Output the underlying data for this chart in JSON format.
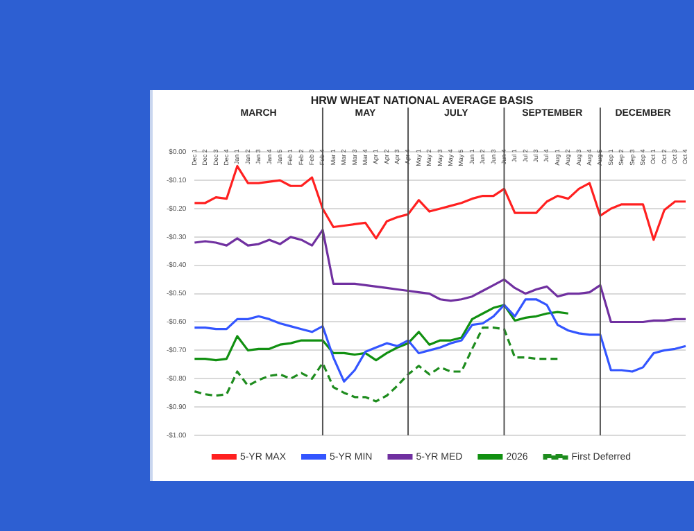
{
  "chart_data": {
    "type": "line",
    "title": "HRW WHEAT NATIONAL AVERAGE BASIS",
    "categories": [
      "Dec 1",
      "Dec 2",
      "Dec 3",
      "Dec 4",
      "Jan 1",
      "Jan 2",
      "Jan 3",
      "Jan 4",
      "Jan 5",
      "Feb 1",
      "Feb 2",
      "Feb 3",
      "Feb 4",
      "Mar 1",
      "Mar 2",
      "Mar 3",
      "Mar 4",
      "Apr 1",
      "Apr 2",
      "Apr 3",
      "Apr 4",
      "May 1",
      "May 2",
      "May 3",
      "May 4",
      "May 5",
      "Jun 1",
      "Jun 2",
      "Jun 3",
      "Jun 4",
      "Jul 1",
      "Jul 2",
      "Jul 3",
      "Jul 4",
      "Aug 1",
      "Aug 2",
      "Aug 3",
      "Aug 4",
      "Aug 5",
      "Sep 1",
      "Sep 2",
      "Sep 3",
      "Sep 4",
      "Oct 1",
      "Oct 2",
      "Oct 3",
      "Oct 4"
    ],
    "series": [
      {
        "name": "5-YR MAX",
        "color": "#ff2020",
        "values": [
          -0.18,
          -0.18,
          -0.16,
          -0.165,
          -0.05,
          -0.11,
          -0.11,
          -0.105,
          -0.1,
          -0.12,
          -0.12,
          -0.09,
          -0.2,
          -0.265,
          -0.26,
          -0.255,
          -0.25,
          -0.305,
          -0.245,
          -0.23,
          -0.22,
          -0.17,
          -0.21,
          -0.2,
          -0.19,
          -0.18,
          -0.165,
          -0.155,
          -0.155,
          -0.13,
          -0.215,
          -0.215,
          -0.215,
          -0.175,
          -0.155,
          -0.165,
          -0.13,
          -0.11,
          -0.225,
          -0.2,
          -0.185,
          -0.185,
          -0.185,
          -0.31,
          -0.205,
          -0.175,
          -0.175
        ]
      },
      {
        "name": "5-YR MIN",
        "color": "#3355ff",
        "values": [
          -0.62,
          -0.62,
          -0.625,
          -0.625,
          -0.59,
          -0.59,
          -0.58,
          -0.59,
          -0.605,
          -0.615,
          -0.625,
          -0.635,
          -0.615,
          -0.725,
          -0.81,
          -0.77,
          -0.705,
          -0.69,
          -0.675,
          -0.685,
          -0.665,
          -0.71,
          -0.7,
          -0.69,
          -0.675,
          -0.665,
          -0.61,
          -0.605,
          -0.58,
          -0.54,
          -0.58,
          -0.52,
          -0.52,
          -0.54,
          -0.61,
          -0.63,
          -0.64,
          -0.645,
          -0.645,
          -0.77,
          -0.77,
          -0.775,
          -0.76,
          -0.71,
          -0.7,
          -0.695,
          -0.685
        ]
      },
      {
        "name": "5-YR MED",
        "color": "#7030a0",
        "values": [
          -0.32,
          -0.315,
          -0.32,
          -0.33,
          -0.305,
          -0.33,
          -0.325,
          -0.31,
          -0.325,
          -0.3,
          -0.31,
          -0.33,
          -0.275,
          -0.465,
          -0.465,
          -0.465,
          -0.47,
          -0.475,
          -0.48,
          -0.485,
          -0.49,
          -0.495,
          -0.5,
          -0.52,
          -0.525,
          -0.52,
          -0.51,
          -0.49,
          -0.47,
          -0.45,
          -0.48,
          -0.5,
          -0.485,
          -0.475,
          -0.51,
          -0.5,
          -0.5,
          -0.495,
          -0.47,
          -0.6,
          -0.6,
          -0.6,
          -0.6,
          -0.595,
          -0.595,
          -0.59,
          -0.59
        ]
      },
      {
        "name": "2026",
        "color": "#119011",
        "values": [
          -0.73,
          -0.73,
          -0.735,
          -0.73,
          -0.65,
          -0.7,
          -0.695,
          -0.695,
          -0.68,
          -0.675,
          -0.665,
          -0.665,
          -0.665,
          -0.71,
          -0.71,
          -0.715,
          -0.71,
          -0.735,
          -0.71,
          -0.69,
          -0.675,
          -0.635,
          -0.68,
          -0.665,
          -0.665,
          -0.655,
          -0.59,
          -0.57,
          -0.55,
          -0.54,
          -0.595,
          -0.585,
          -0.58,
          -0.57,
          -0.565,
          -0.57,
          null,
          null,
          null,
          null,
          null,
          null,
          null,
          null,
          null,
          null,
          null
        ]
      },
      {
        "name": "First Deferred",
        "color": "#1e8c1e",
        "line_style": "dashed",
        "values": [
          -0.845,
          -0.855,
          -0.86,
          -0.855,
          -0.775,
          -0.825,
          -0.805,
          -0.79,
          -0.785,
          -0.8,
          -0.78,
          -0.8,
          -0.745,
          -0.83,
          -0.85,
          -0.865,
          -0.865,
          -0.88,
          -0.86,
          -0.825,
          -0.785,
          -0.755,
          -0.785,
          -0.76,
          -0.775,
          -0.775,
          -0.695,
          -0.62,
          -0.62,
          -0.625,
          -0.725,
          -0.725,
          -0.73,
          -0.73,
          -0.73,
          null,
          null,
          null,
          null,
          null,
          null,
          null,
          null,
          null,
          null,
          null,
          null
        ]
      }
    ],
    "ylim": [
      -1,
      0
    ],
    "yticks": [
      {
        "value": 0,
        "label": "$0.00"
      },
      {
        "value": -0.1,
        "label": "-$0.10"
      },
      {
        "value": -0.2,
        "label": "-$0.20"
      },
      {
        "value": -0.3,
        "label": "-$0.30"
      },
      {
        "value": -0.4,
        "label": "-$0.40"
      },
      {
        "value": -0.5,
        "label": "-$0.50"
      },
      {
        "value": -0.6,
        "label": "-$0.60"
      },
      {
        "value": -0.7,
        "label": "-$0.70"
      },
      {
        "value": -0.8,
        "label": "-$0.80"
      },
      {
        "value": -0.9,
        "label": "-$0.90"
      },
      {
        "value": -1,
        "label": "-$1.00"
      }
    ],
    "ref_lines": [
      {
        "axis": "x",
        "value": "Feb 4",
        "color": "#555555"
      },
      {
        "axis": "x",
        "value": "Apr 4",
        "color": "#555555"
      },
      {
        "axis": "x",
        "value": "Jun 4",
        "color": "#555555"
      },
      {
        "axis": "x",
        "value": "Aug 5",
        "color": "#555555"
      }
    ],
    "annotations": [
      "MARCH",
      "MAY",
      "JULY",
      "SEPTEMBER",
      "DECEMBER"
    ],
    "grid": "y",
    "legend": "bottom",
    "line_style": "solid",
    "marker": "none"
  }
}
